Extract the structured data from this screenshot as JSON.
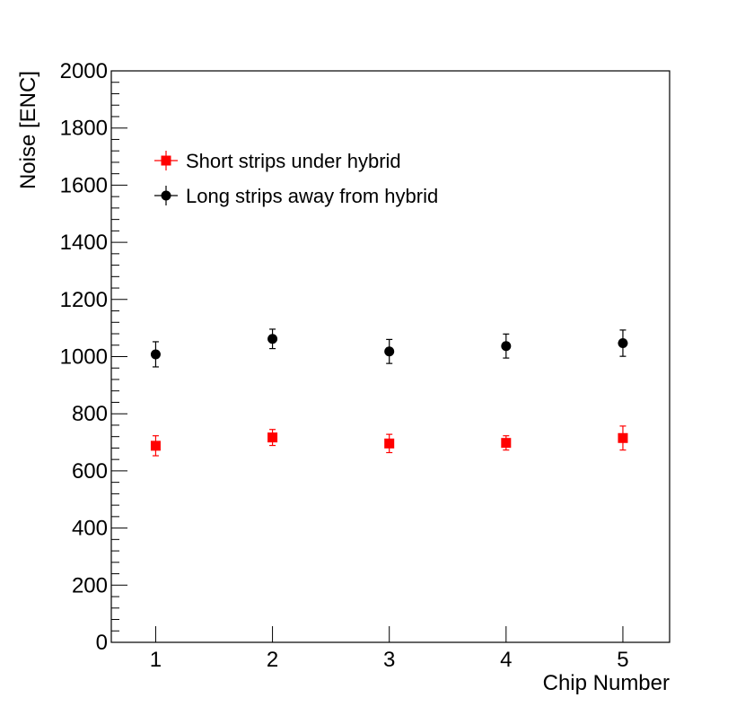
{
  "chart_data": {
    "type": "scatter",
    "title": "",
    "xlabel": "Chip Number",
    "ylabel": "Noise [ENC]",
    "xlim": [
      0.62,
      5.4
    ],
    "ylim": [
      0,
      2000
    ],
    "x_ticks": [
      1,
      2,
      3,
      4,
      5
    ],
    "y_ticks": [
      0,
      200,
      400,
      600,
      800,
      1000,
      1200,
      1400,
      1600,
      1800,
      2000
    ],
    "grid": false,
    "legend_position": "top-left",
    "series": [
      {
        "name": "Short strips under hybrid",
        "color": "#ff0000",
        "marker": "square",
        "x": [
          1,
          2,
          3,
          4,
          5
        ],
        "y": [
          688,
          717,
          696,
          698,
          715
        ],
        "yerr": [
          35,
          28,
          32,
          25,
          42
        ]
      },
      {
        "name": "Long strips away from hybrid",
        "color": "#000000",
        "marker": "circle",
        "x": [
          1,
          2,
          3,
          4,
          5
        ],
        "y": [
          1008,
          1062,
          1018,
          1037,
          1047
        ],
        "yerr": [
          44,
          34,
          42,
          42,
          46
        ]
      }
    ]
  }
}
